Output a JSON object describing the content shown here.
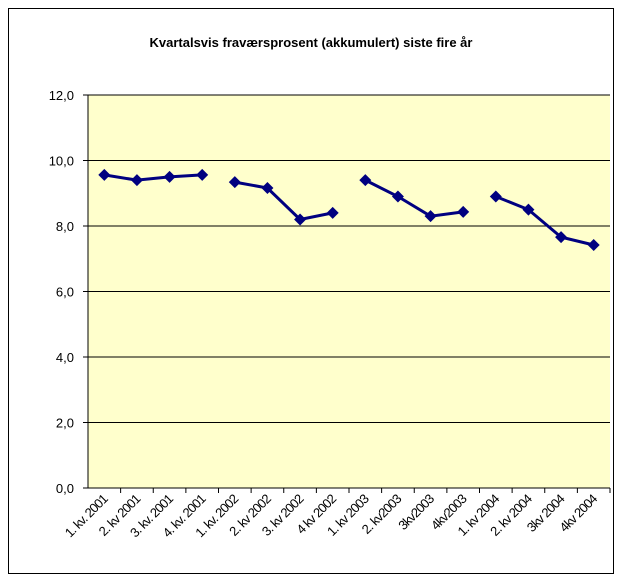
{
  "chart_data": {
    "type": "line",
    "title": "Kvartalsvis fraværsprosent (akkumulert) siste fire år",
    "categories": [
      "1. kv. 2001",
      "2. kv 2001",
      "3. kv. 2001",
      "4. kv. 2001",
      "1. kv. 2002",
      "2. kv 2002",
      "3. kv 2002",
      "4 kv 2002",
      "1. kv 2003",
      "2. kv2003",
      "3kv2003",
      "4kv2003",
      "1. kv 2004",
      "2. kv 2004",
      "3kv 2004",
      "4kv 2004"
    ],
    "series": [
      {
        "color": "#000080",
        "values": [
          9.56,
          9.4,
          9.5,
          9.56,
          null,
          null,
          null,
          null,
          null,
          null,
          null,
          null,
          null,
          null,
          null,
          null
        ]
      },
      {
        "color": "#000080",
        "values": [
          null,
          null,
          null,
          null,
          9.34,
          9.16,
          8.2,
          8.4,
          null,
          null,
          null,
          null,
          null,
          null,
          null,
          null
        ]
      },
      {
        "color": "#000080",
        "values": [
          null,
          null,
          null,
          null,
          null,
          null,
          null,
          null,
          9.4,
          8.9,
          8.3,
          8.43,
          null,
          null,
          null,
          null
        ]
      },
      {
        "color": "#000080",
        "values": [
          null,
          null,
          null,
          null,
          null,
          null,
          null,
          null,
          null,
          null,
          null,
          null,
          8.9,
          8.5,
          7.66,
          7.42
        ]
      }
    ],
    "ylim": [
      0,
      12
    ],
    "yticks": [
      {
        "value": 0,
        "label": "0,0"
      },
      {
        "value": 2,
        "label": "2,0"
      },
      {
        "value": 4,
        "label": "4,0"
      },
      {
        "value": 6,
        "label": "6,0"
      },
      {
        "value": 8,
        "label": "8,0"
      },
      {
        "value": 10,
        "label": "10,0"
      },
      {
        "value": 12,
        "label": "12,0"
      }
    ],
    "grid": true,
    "background": "#ffffcc"
  }
}
